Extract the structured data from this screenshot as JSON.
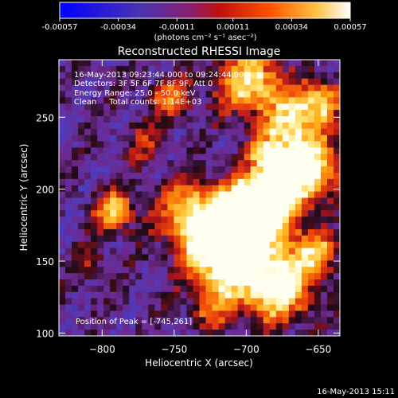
{
  "colorbar": {
    "ticks": [
      "-0.00057",
      "-0.00034",
      "-0.00011",
      "0.00011",
      "0.00034",
      "0.00057"
    ],
    "tick_values": [
      -0.00057,
      -0.00034,
      -0.00011,
      0.00011,
      0.00034,
      0.00057
    ],
    "range": [
      -0.00057,
      0.00057
    ],
    "units_label": "(photons cm⁻² s⁻¹ asec⁻²)"
  },
  "image": {
    "title": "Reconstructed RHESSI Image",
    "info_time": "16-May-2013 09:23:44.000 to 09:24:44.000",
    "info_detectors": "Detectors: 3F 5F 6F 7F 8F 9F, Att 0",
    "info_energy": "Energy Range: 25.0 - 50.0 keV",
    "info_clean": "Clean     Total counts: 1.14E+03",
    "peak_text": "Position of Peak = [-745,261]"
  },
  "footer": {
    "timestamp": "16-May-2013 15:11"
  },
  "colors": {
    "colormap": [
      "#0000ff",
      "#4a34b0",
      "#7a2a8a",
      "#b41420",
      "#ff4000",
      "#ff9c00",
      "#ffe66e",
      "#ffffff"
    ],
    "background": "#000000"
  },
  "chart_data": {
    "type": "heatmap",
    "title": "Reconstructed RHESSI Image",
    "xlabel": "Heliocentric X (arcsec)",
    "ylabel": "Heliocentric Y (arcsec)",
    "xlim": [
      -830,
      -635
    ],
    "ylim": [
      98,
      290
    ],
    "x_ticks": [
      -800,
      -750,
      -700,
      -650
    ],
    "x_tick_labels": [
      "−800",
      "−750",
      "−700",
      "−650"
    ],
    "y_ticks": [
      100,
      150,
      200,
      250
    ],
    "y_tick_labels": [
      "100",
      "150",
      "200",
      "250"
    ],
    "peak_position": [
      -745,
      261
    ],
    "grid": false
  }
}
